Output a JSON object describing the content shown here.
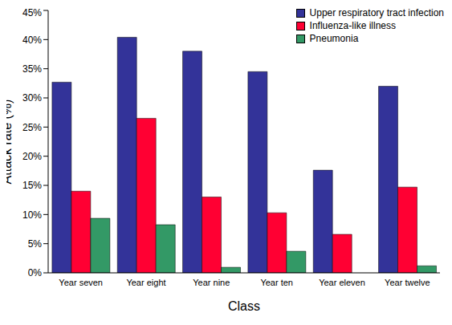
{
  "chart_data": {
    "type": "bar",
    "x_label": "Class",
    "y_label": "Attack rate (%)",
    "categories": [
      "Year seven",
      "Year eight",
      "Year nine",
      "Year ten",
      "Year eleven",
      "Year twelve"
    ],
    "series": [
      {
        "name": "Upper respiratory tract infection",
        "color": "#333399",
        "values": [
          32.7,
          40.4,
          38.0,
          34.5,
          17.6,
          32.0
        ]
      },
      {
        "name": "Influenza-like illness",
        "color": "#FF0033",
        "values": [
          14.0,
          26.5,
          13.0,
          10.3,
          6.6,
          14.7
        ]
      },
      {
        "name": "Pneumonia",
        "color": "#339966",
        "values": [
          9.35,
          8.25,
          0.95,
          3.7,
          0,
          1.2
        ]
      }
    ],
    "ylim": [
      0,
      45
    ],
    "yticks": [
      {
        "value": 0,
        "label": "0%"
      },
      {
        "value": 5,
        "label": "5%"
      },
      {
        "value": 10,
        "label": "10%"
      },
      {
        "value": 15,
        "label": "15%"
      },
      {
        "value": 20,
        "label": "20%"
      },
      {
        "value": 25,
        "label": "25%"
      },
      {
        "value": 30,
        "label": "30%"
      },
      {
        "value": 35,
        "label": "35%"
      },
      {
        "value": 40,
        "label": "40%"
      },
      {
        "value": 45,
        "label": "45%"
      }
    ],
    "grid": false,
    "legend": "upper right"
  }
}
